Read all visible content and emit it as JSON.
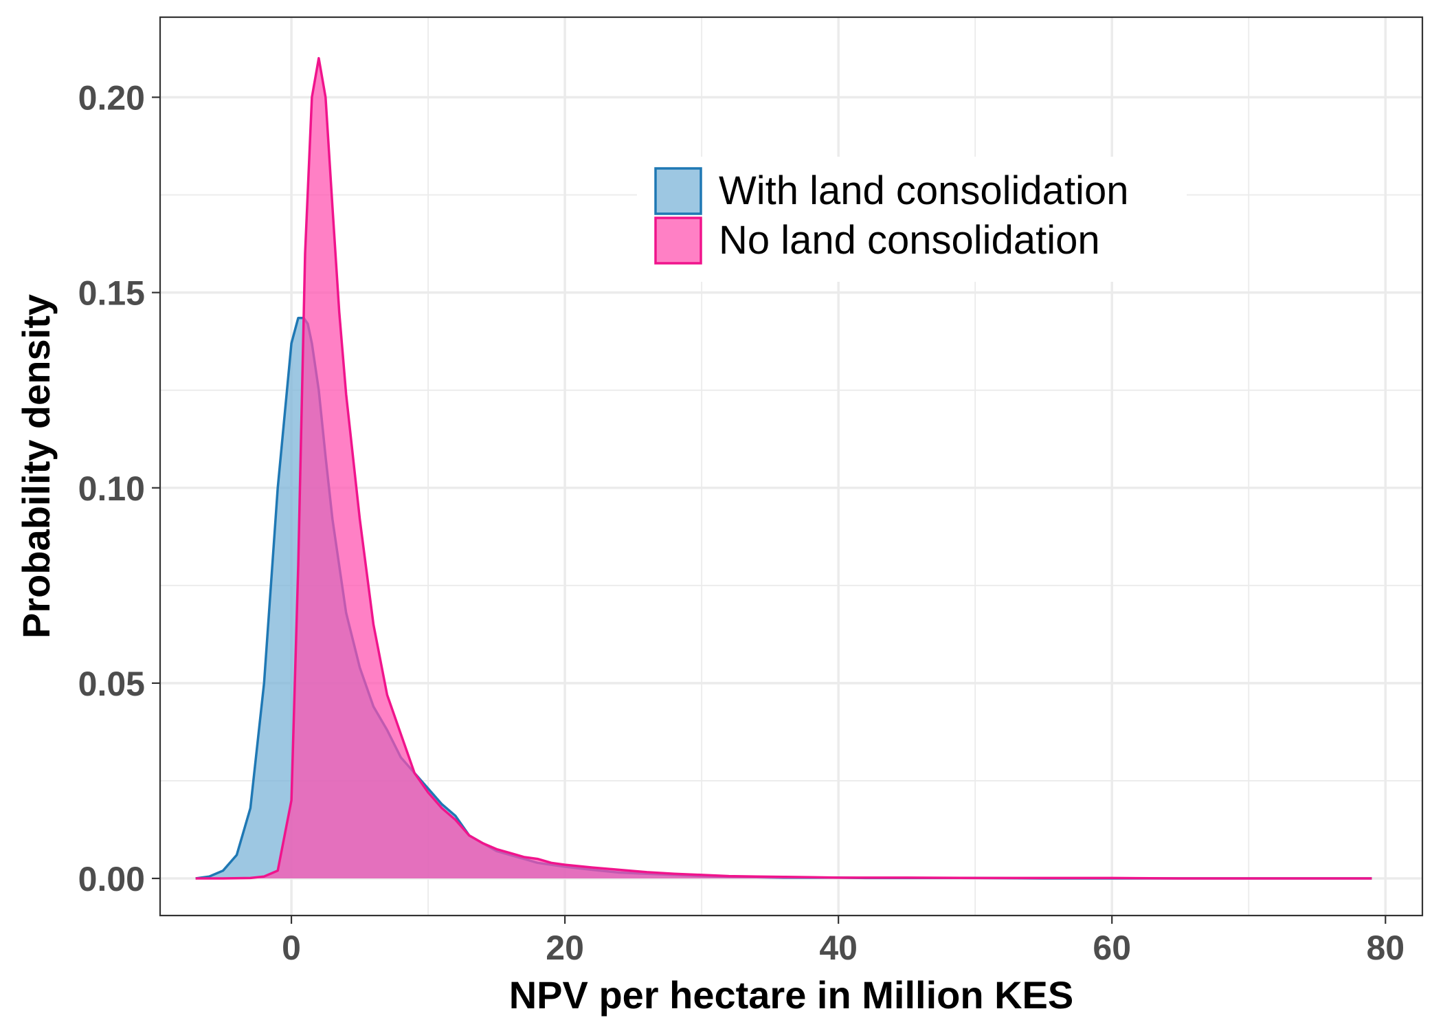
{
  "chart_data": {
    "type": "area",
    "title": "",
    "xlabel": "NPV per hectare in Million KES",
    "ylabel": "Probability density",
    "xlim": [
      -9.6,
      82.7
    ],
    "ylim": [
      -0.0095,
      0.2205
    ],
    "xticks": [
      0,
      20,
      40,
      60,
      80
    ],
    "xtick_labels": [
      "0",
      "20",
      "40",
      "60",
      "80"
    ],
    "yticks": [
      0.0,
      0.05,
      0.1,
      0.15,
      0.2
    ],
    "ytick_labels": [
      "0.00",
      "0.05",
      "0.10",
      "0.15",
      "0.20"
    ],
    "grid": true,
    "legend_position": "top-right, inside plot",
    "series": [
      {
        "name": "With land consolidation",
        "fill": "#77b2d7",
        "stroke": "#1f78b4",
        "x": [
          -7,
          -6,
          -5,
          -4,
          -3,
          -2,
          -1,
          0,
          0.5,
          0.9,
          1.2,
          1.5,
          2,
          2.5,
          3,
          4,
          5,
          6,
          7,
          8,
          9,
          10,
          11,
          12,
          13,
          14,
          15,
          16,
          17,
          18,
          19,
          20,
          22,
          24,
          26,
          28,
          30,
          32,
          34,
          36,
          38,
          40,
          42,
          45,
          50,
          55,
          60,
          65,
          70,
          75,
          79
        ],
        "y": [
          0.0,
          0.0005,
          0.002,
          0.006,
          0.018,
          0.05,
          0.1,
          0.137,
          0.1435,
          0.1435,
          0.142,
          0.137,
          0.125,
          0.108,
          0.092,
          0.068,
          0.054,
          0.044,
          0.038,
          0.031,
          0.027,
          0.023,
          0.019,
          0.016,
          0.011,
          0.009,
          0.007,
          0.006,
          0.005,
          0.004,
          0.0035,
          0.003,
          0.0022,
          0.0015,
          0.0012,
          0.0009,
          0.0006,
          0.0004,
          0.0003,
          0.0002,
          0.0002,
          0.0002,
          0.0001,
          0.0001,
          0.0001,
          0.0,
          0.0,
          0.0,
          0.0,
          0.0,
          0.0
        ]
      },
      {
        "name": "No land consolidation",
        "fill": "#ff4faf",
        "stroke": "#f0148c",
        "x": [
          -7,
          -5,
          -3,
          -2,
          -1,
          0,
          0.5,
          1,
          1.5,
          2,
          2.5,
          3,
          3.5,
          4,
          5,
          6,
          7,
          8,
          9,
          10,
          11,
          12,
          13,
          14,
          15,
          16,
          17,
          18,
          19,
          20,
          22,
          24,
          26,
          28,
          30,
          32,
          34,
          36,
          38,
          40,
          45,
          50,
          55,
          60,
          65,
          70,
          75,
          79
        ],
        "y": [
          0.0,
          0.0,
          0.0001,
          0.0005,
          0.002,
          0.02,
          0.08,
          0.16,
          0.2,
          0.21,
          0.2,
          0.172,
          0.145,
          0.124,
          0.092,
          0.065,
          0.047,
          0.037,
          0.027,
          0.022,
          0.018,
          0.015,
          0.011,
          0.009,
          0.0075,
          0.0065,
          0.0055,
          0.005,
          0.004,
          0.0035,
          0.0028,
          0.0022,
          0.0016,
          0.0012,
          0.0009,
          0.0006,
          0.0005,
          0.0004,
          0.0003,
          0.0002,
          0.0002,
          0.0001,
          0.0001,
          0.0001,
          0.0,
          0.0,
          0.0,
          0.0
        ]
      }
    ]
  }
}
